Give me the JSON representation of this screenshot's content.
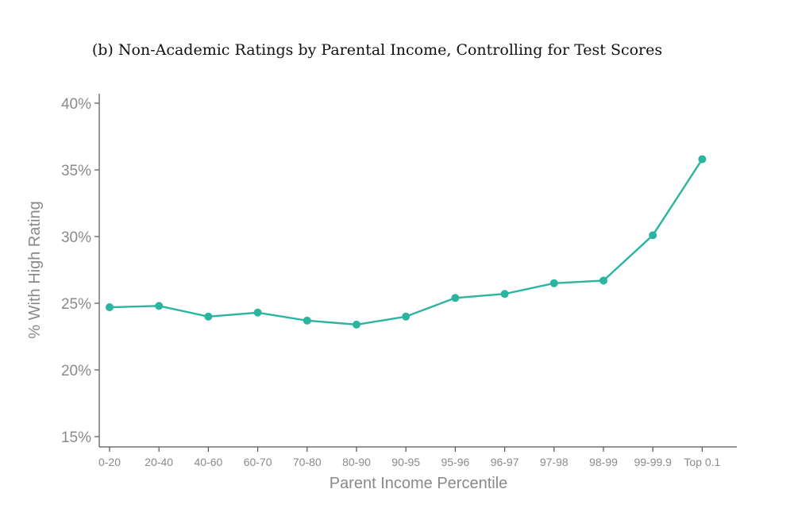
{
  "chart_data": {
    "type": "line",
    "title": "(b) Non-Academic Ratings by Parental Income, Controlling for Test Scores",
    "xlabel": "Parent Income Percentile",
    "ylabel": "% With High Rating",
    "categories": [
      "0-20",
      "20-40",
      "40-60",
      "60-70",
      "70-80",
      "80-90",
      "90-95",
      "95-96",
      "96-97",
      "97-98",
      "98-99",
      "99-99.9",
      "Top 0.1"
    ],
    "values": [
      24.7,
      24.8,
      24.0,
      24.3,
      23.7,
      23.4,
      24.0,
      25.4,
      25.7,
      26.5,
      26.7,
      30.1,
      35.8
    ],
    "ylim": [
      15,
      40
    ],
    "yticks": [
      15,
      20,
      25,
      30,
      35,
      40
    ],
    "ytick_labels": [
      "15%",
      "20%",
      "25%",
      "30%",
      "35%",
      "40%"
    ],
    "color": "#2bb5a0",
    "grid": false,
    "legend": "none"
  }
}
